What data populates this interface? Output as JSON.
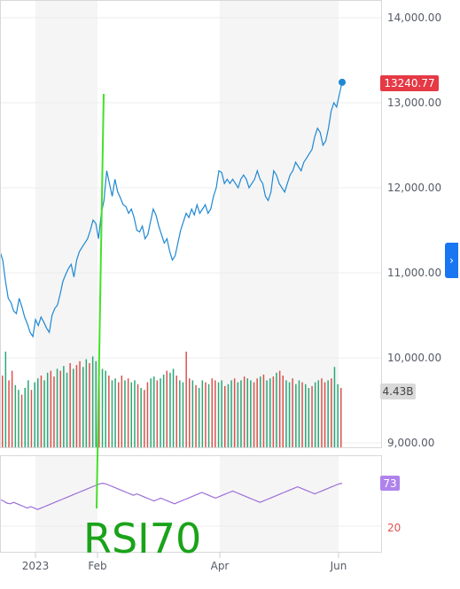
{
  "chart_data": {
    "type": "line",
    "title": "",
    "xlabel": "",
    "ylabel": "",
    "x_ticks": [
      "2023",
      "Feb",
      "Apr",
      "Jun"
    ],
    "y_ticks": [
      "14,000.00",
      "13,000.00",
      "12,000.00",
      "11,000.00",
      "10,000.00",
      "9,000.00"
    ],
    "ylim": [
      8950,
      14500
    ],
    "series": [
      {
        "values": [
          11250,
          11150,
          10900,
          10700,
          10650,
          10550,
          10520,
          10700,
          10600,
          10480,
          10400,
          10300,
          10250,
          10450,
          10380,
          10480,
          10420,
          10350,
          10300,
          10500,
          10580,
          10620,
          10750,
          10900,
          10980,
          11050,
          11100,
          10950,
          11150,
          11250,
          11300,
          11350,
          11400,
          11500,
          11620,
          11580,
          11400,
          11700,
          11850,
          12200,
          12050,
          11900,
          12100,
          11950,
          11880,
          11800,
          11780,
          11700,
          11750,
          11650,
          11500,
          11480,
          11550,
          11400,
          11450,
          11600,
          11750,
          11680,
          11550,
          11450,
          11350,
          11400,
          11250,
          11150,
          11200,
          11350,
          11500,
          11600,
          11700,
          11650,
          11750,
          11680,
          11800,
          11700,
          11750,
          11800,
          11700,
          11750,
          11900,
          12000,
          12200,
          12180,
          12050,
          12100,
          12050,
          12100,
          12050,
          12000,
          12100,
          12150,
          12100,
          12000,
          12050,
          12100,
          12200,
          12100,
          12050,
          11900,
          11850,
          11950,
          12200,
          12150,
          12050,
          12000,
          11950,
          12050,
          12150,
          12200,
          12300,
          12250,
          12200,
          12300,
          12350,
          12400,
          12450,
          12600,
          12700,
          12650,
          12500,
          12550,
          12700,
          12900,
          13000,
          12950,
          13100,
          13240.77
        ],
        "color": "#1e88d2"
      }
    ],
    "last_price": "13240.77",
    "volume": {
      "label": "4.43B",
      "values": [
        0.75,
        1.0,
        0.7,
        0.8,
        0.65,
        0.6,
        0.55,
        0.62,
        0.7,
        0.6,
        0.68,
        0.72,
        0.75,
        0.7,
        0.78,
        0.8,
        0.74,
        0.82,
        0.8,
        0.85,
        0.78,
        0.88,
        0.82,
        0.86,
        0.9,
        0.84,
        0.92,
        0.88,
        0.95,
        0.9,
        0.86,
        0.82,
        0.8,
        0.75,
        0.7,
        0.72,
        0.68,
        0.75,
        0.7,
        0.72,
        0.68,
        0.7,
        0.66,
        0.62,
        0.6,
        0.68,
        0.72,
        0.74,
        0.7,
        0.72,
        0.76,
        0.8,
        0.78,
        0.82,
        0.75,
        0.7,
        0.68,
        1.0,
        0.72,
        0.7,
        0.65,
        0.62,
        0.7,
        0.68,
        0.66,
        0.72,
        0.7,
        0.68,
        0.7,
        0.64,
        0.66,
        0.7,
        0.72,
        0.68,
        0.7,
        0.74,
        0.72,
        0.7,
        0.68,
        0.72,
        0.74,
        0.76,
        0.7,
        0.72,
        0.74,
        0.78,
        0.8,
        0.75,
        0.7,
        0.68,
        0.72,
        0.66,
        0.7,
        0.68,
        0.66,
        0.62,
        0.64,
        0.68,
        0.7,
        0.72,
        0.68,
        0.7,
        0.72,
        0.84,
        0.66,
        0.62
      ],
      "up_color": "#2aa876",
      "down_color": "#d9534f"
    },
    "rsi": {
      "label": "73",
      "tick": "20",
      "values": [
        50,
        48,
        45,
        44,
        46,
        44,
        42,
        40,
        38,
        40,
        38,
        36,
        38,
        40,
        42,
        44,
        46,
        48,
        50,
        52,
        54,
        56,
        58,
        60,
        62,
        64,
        66,
        68,
        70,
        72,
        73,
        72,
        70,
        68,
        66,
        64,
        62,
        60,
        58,
        56,
        58,
        56,
        54,
        52,
        50,
        48,
        50,
        52,
        50,
        48,
        46,
        44,
        46,
        48,
        50,
        52,
        54,
        56,
        58,
        60,
        58,
        56,
        54,
        52,
        54,
        56,
        58,
        60,
        62,
        60,
        58,
        56,
        54,
        52,
        50,
        48,
        46,
        48,
        50,
        52,
        54,
        56,
        58,
        60,
        62,
        64,
        66,
        68,
        66,
        64,
        62,
        60,
        58,
        60,
        62,
        64,
        66,
        68,
        70,
        72,
        73
      ],
      "color": "#9c6fd8"
    },
    "annotation": "RSI70"
  }
}
